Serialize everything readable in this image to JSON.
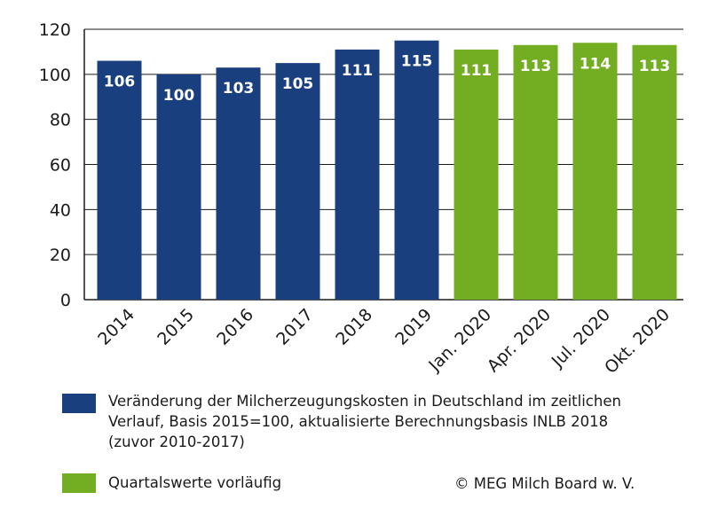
{
  "chart_data": {
    "type": "bar",
    "categories": [
      "2014",
      "2015",
      "2016",
      "2017",
      "2018",
      "2019",
      "Jan. 2020",
      "Apr. 2020",
      "Jul. 2020",
      "Okt. 2020"
    ],
    "values": [
      106,
      100,
      103,
      105,
      111,
      115,
      111,
      113,
      114,
      113
    ],
    "bar_groups": [
      "annual",
      "annual",
      "annual",
      "annual",
      "annual",
      "annual",
      "quarterly",
      "quarterly",
      "quarterly",
      "quarterly"
    ],
    "data_labels": [
      "106",
      "100",
      "103",
      "105",
      "111",
      "115",
      "111",
      "113",
      "114",
      "113"
    ],
    "yticks": [
      0,
      20,
      40,
      60,
      80,
      100,
      120
    ],
    "ylim": [
      0,
      120
    ],
    "grid": "horizontal",
    "colors": {
      "annual": "#1a3f7f",
      "quarterly": "#73ad21",
      "grid": "#1a1a1a"
    }
  },
  "legend": {
    "annual_lines": [
      "Veränderung der Milcherzeugungskosten in Deutschland im zeitlichen",
      "Verlauf, Basis 2015=100, aktualisierte Berechnungsbasis INLB 2018",
      "(zuvor 2010-2017)"
    ],
    "quarterly": "Quartalswerte vorläufig"
  },
  "credit": "© MEG Milch Board w. V."
}
